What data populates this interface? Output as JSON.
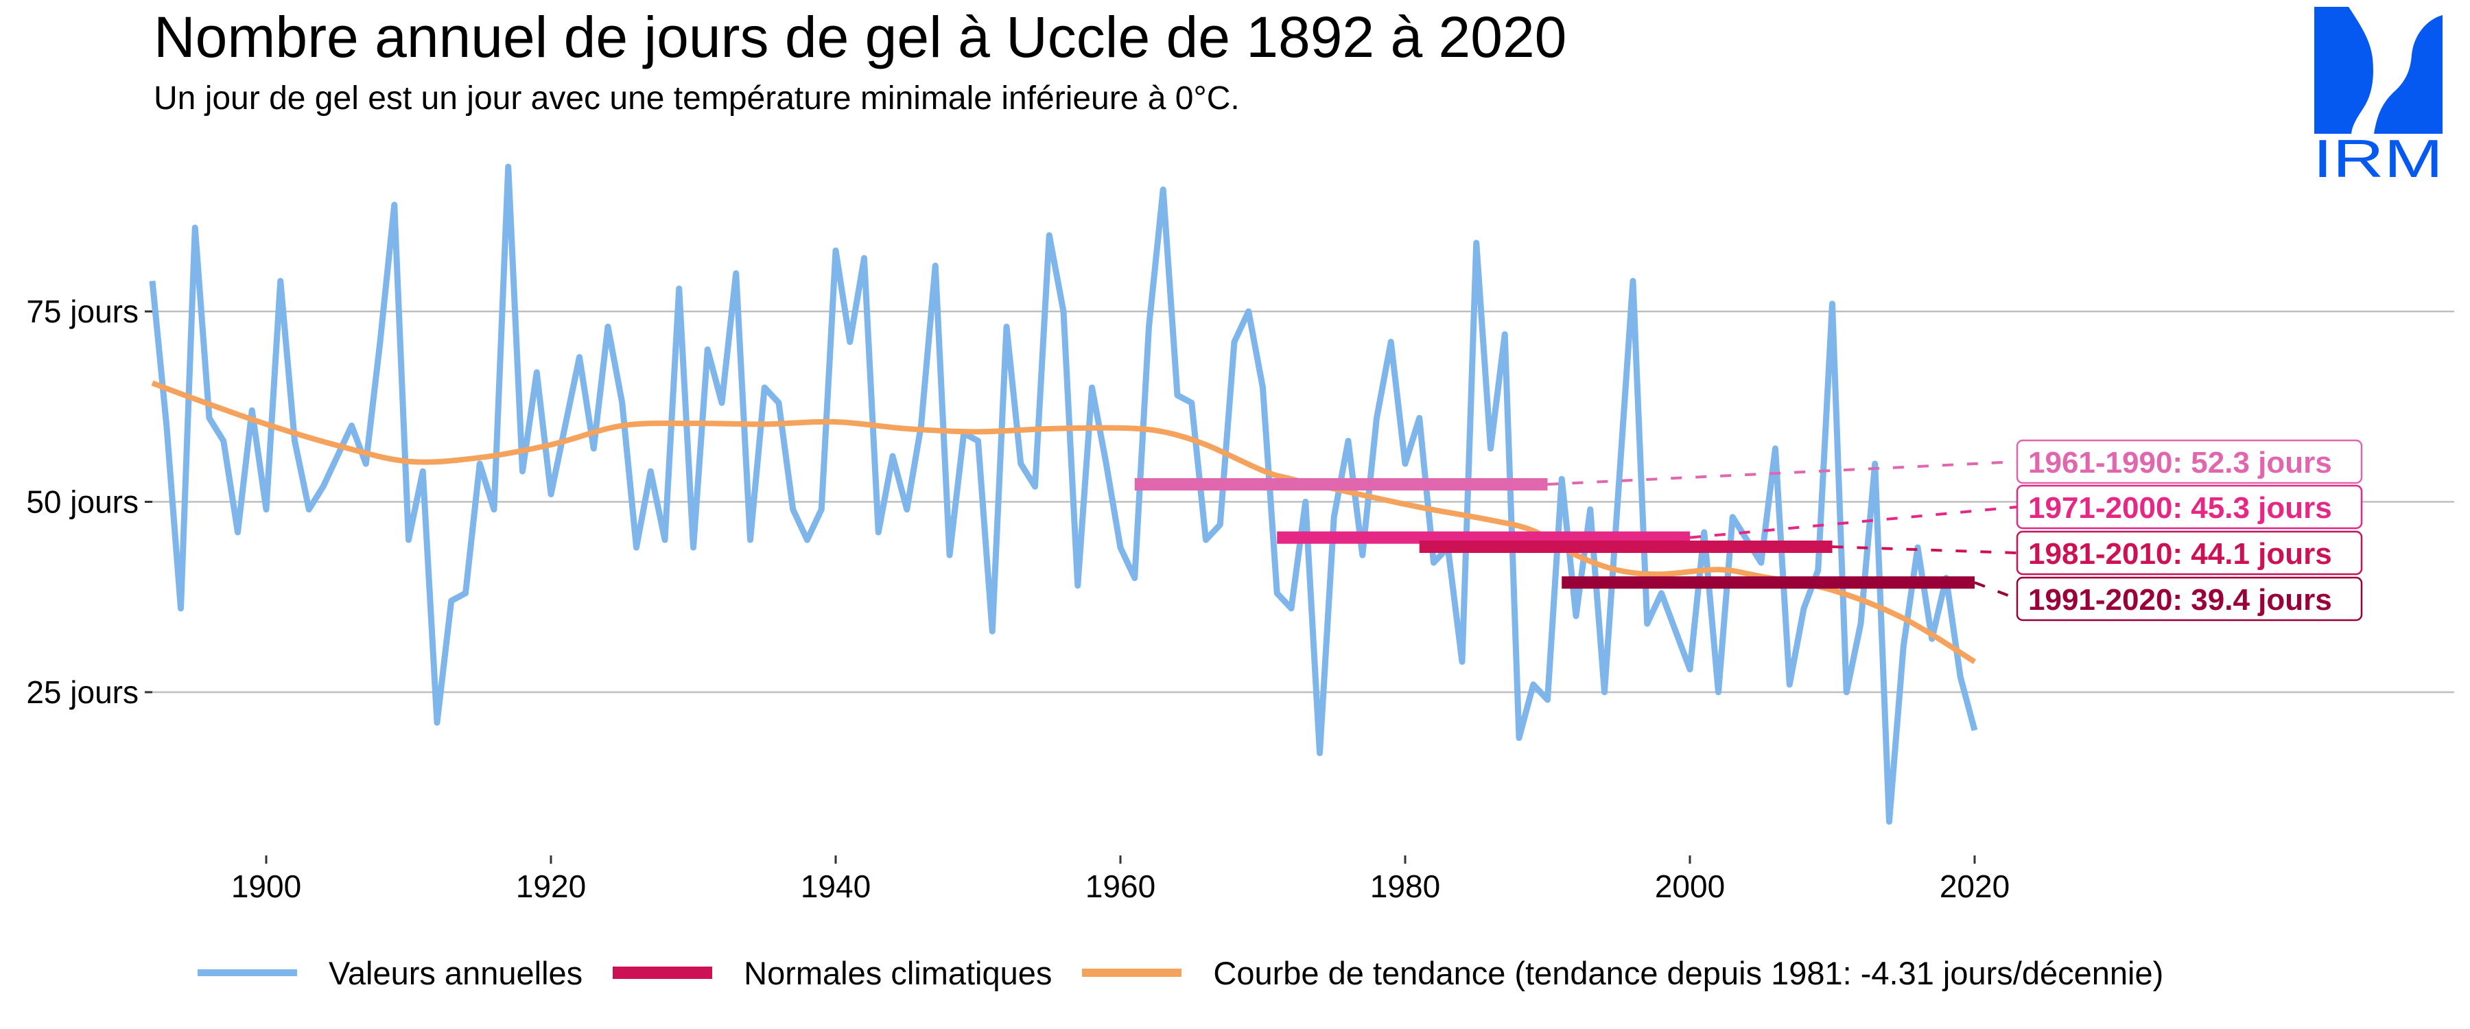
{
  "header": {
    "title": "Nombre annuel de jours de gel à Uccle de 1892 à 2020",
    "subtitle": "Un jour de gel est un jour avec une température minimale inférieure à 0°C.",
    "logo_text": "IRM"
  },
  "colors": {
    "annual": "#7EB5EA",
    "trend": "#F5A25D",
    "normal_legend": "#CC1155",
    "grid": "#BEBEBE",
    "logo": "#0559F0"
  },
  "legend": {
    "items": [
      {
        "label": "Valeurs annuelles",
        "color": "#7EB5EA",
        "kind": "line"
      },
      {
        "label": "Normales climatiques",
        "color": "#CC1155",
        "kind": "bar"
      },
      {
        "label": "Courbe de tendance (tendance depuis 1981: -4.31 jours/décennie)",
        "color": "#F5A25D",
        "kind": "trend"
      }
    ]
  },
  "chart_data": {
    "type": "line",
    "title": "Nombre annuel de jours de gel à Uccle de 1892 à 2020",
    "subtitle": "Un jour de gel est un jour avec une température minimale inférieure à 0°C.",
    "xlabel": "",
    "ylabel": "",
    "xlim": [
      1892,
      2020
    ],
    "ylim": [
      5,
      95
    ],
    "grid": true,
    "legend_position": "bottom",
    "x_ticks": [
      1900,
      1920,
      1940,
      1960,
      1980,
      2000,
      2020
    ],
    "x_tick_labels": [
      "1900",
      "1920",
      "1940",
      "1960",
      "1980",
      "2000",
      "2020"
    ],
    "y_ticks": [
      25,
      50,
      75
    ],
    "y_tick_labels": [
      "25 jours",
      "50 jours",
      "75 jours"
    ],
    "series": [
      {
        "name": "Valeurs annuelles",
        "color": "#7EB5EA",
        "x_start": 1892,
        "values": [
          79,
          60,
          36,
          86,
          61,
          58,
          46,
          62,
          49,
          79,
          58,
          49,
          52,
          56,
          60,
          55,
          71,
          89,
          45,
          54,
          21,
          37,
          38,
          55,
          49,
          94,
          54,
          67,
          51,
          60,
          69,
          57,
          73,
          63,
          44,
          54,
          45,
          78,
          44,
          70,
          63,
          80,
          45,
          65,
          63,
          49,
          45,
          49,
          83,
          71,
          82,
          46,
          56,
          49,
          60,
          81,
          43,
          59,
          58,
          33,
          73,
          55,
          52,
          85,
          75,
          39,
          65,
          55,
          44,
          40,
          73,
          91,
          64,
          63,
          45,
          47,
          71,
          75,
          65,
          38,
          36,
          50,
          17,
          48,
          58,
          43,
          61,
          71,
          55,
          61,
          42,
          44,
          29,
          84,
          57,
          72,
          19,
          26,
          24,
          53,
          35,
          49,
          25,
          52,
          79,
          34,
          38,
          33,
          28,
          46,
          25,
          48,
          45,
          42,
          57,
          26,
          36,
          41,
          76,
          25,
          34,
          55,
          8,
          31,
          44,
          32,
          40,
          27,
          20
        ]
      },
      {
        "name": "Courbe de tendance",
        "color": "#F5A25D",
        "points": [
          [
            1892,
            65.6
          ],
          [
            1895,
            63.5
          ],
          [
            1900,
            60.2
          ],
          [
            1905,
            57.4
          ],
          [
            1910,
            55.3
          ],
          [
            1915,
            55.8
          ],
          [
            1920,
            57.5
          ],
          [
            1925,
            60.0
          ],
          [
            1930,
            60.3
          ],
          [
            1935,
            60.2
          ],
          [
            1940,
            60.5
          ],
          [
            1945,
            59.6
          ],
          [
            1950,
            59.2
          ],
          [
            1955,
            59.6
          ],
          [
            1960,
            59.7
          ],
          [
            1963,
            59.2
          ],
          [
            1966,
            57.5
          ],
          [
            1970,
            54.1
          ],
          [
            1972,
            53.0
          ],
          [
            1976,
            51.3
          ],
          [
            1981,
            49.3
          ],
          [
            1986,
            47.6
          ],
          [
            1989,
            46.2
          ],
          [
            1992,
            43.0
          ],
          [
            1995,
            41.0
          ],
          [
            1998,
            40.5
          ],
          [
            2002,
            41.1
          ],
          [
            2005,
            40.2
          ],
          [
            2010,
            38.4
          ],
          [
            2015,
            34.7
          ],
          [
            2020,
            29.0
          ]
        ]
      }
    ],
    "normals": [
      {
        "period": "1961-1990",
        "start": 1961,
        "end": 1990,
        "value": 52.3,
        "label": "1961-1990: 52.3 jours",
        "color": "#E066AE"
      },
      {
        "period": "1971-2000",
        "start": 1971,
        "end": 2000,
        "value": 45.3,
        "label": "1971-2000: 45.3 jours",
        "color": "#E52885"
      },
      {
        "period": "1981-2010",
        "start": 1981,
        "end": 2010,
        "value": 44.1,
        "label": "1981-2010: 44.1 jours",
        "color": "#CC1155"
      },
      {
        "period": "1991-2020",
        "start": 1991,
        "end": 2020,
        "value": 39.4,
        "label": "1991-2020: 39.4 jours",
        "color": "#990038"
      }
    ],
    "trend_since_1981": "-4.31 jours/décennie"
  }
}
